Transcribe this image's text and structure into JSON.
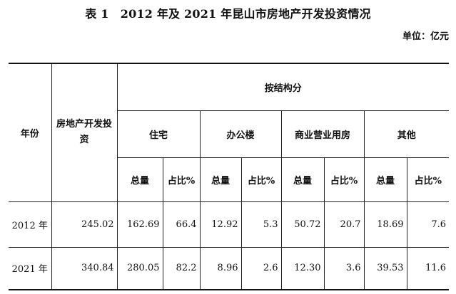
{
  "title": "表 1　2012 年及 2021 年昆山市房地产开发投资情况",
  "unit": "单位：亿元",
  "headers": {
    "year": "年份",
    "total": "房地产开发投资",
    "by_structure": "按结构分",
    "groups": [
      "住宅",
      "办公楼",
      "商业营业用房",
      "其他"
    ],
    "amount": "总量",
    "share": "占比%"
  },
  "rows": [
    {
      "year": "2012 年",
      "total": "245.02",
      "values": [
        "162.69",
        "66.4",
        "12.92",
        "5.3",
        "50.72",
        "20.7",
        "18.69",
        "7.6"
      ]
    },
    {
      "year": "2021 年",
      "total": "340.84",
      "values": [
        "280.05",
        "82.2",
        "8.96",
        "2.6",
        "12.30",
        "3.6",
        "39.53",
        "11.6"
      ]
    }
  ]
}
